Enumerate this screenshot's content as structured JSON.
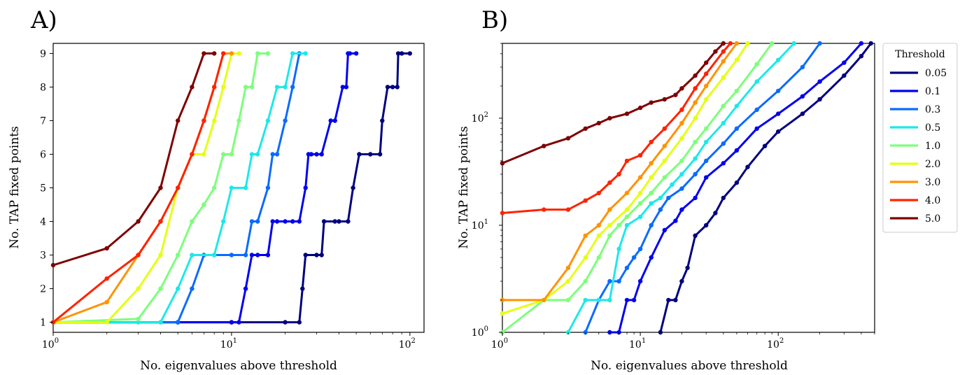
{
  "figure": {
    "panel_a_label": "A)",
    "panel_b_label": "B)"
  },
  "legend": {
    "title": "Threshold",
    "entries": [
      {
        "label": "0.05",
        "color": "#00007f"
      },
      {
        "label": "0.1",
        "color": "#0000f1"
      },
      {
        "label": "0.3",
        "color": "#0a6bff"
      },
      {
        "label": "0.5",
        "color": "#1ee8e8"
      },
      {
        "label": "1.0",
        "color": "#7dff7a"
      },
      {
        "label": "2.0",
        "color": "#e4ff13"
      },
      {
        "label": "3.0",
        "color": "#ff9300"
      },
      {
        "label": "4.0",
        "color": "#ff2200"
      },
      {
        "label": "5.0",
        "color": "#7f0000"
      }
    ]
  },
  "chart_data": [
    {
      "type": "line",
      "title": "A)",
      "xlabel": "No. eigenvalues above threshold",
      "ylabel": "No. TAP fixed points",
      "xscale": "log",
      "yscale": "linear",
      "xlim": [
        1,
        120
      ],
      "ylim": [
        0.7,
        9.3
      ],
      "xticks": [
        {
          "value": 1,
          "base": "10",
          "exp": "0"
        },
        {
          "value": 10,
          "base": "10",
          "exp": "1"
        },
        {
          "value": 100,
          "base": "10",
          "exp": "2"
        }
      ],
      "yticks": [
        "1",
        "2",
        "3",
        "4",
        "5",
        "6",
        "7",
        "8",
        "9"
      ],
      "series": [
        {
          "name": "0.05",
          "color": "#00007f",
          "x": [
            1,
            5,
            10,
            20,
            24,
            25,
            26,
            30,
            32,
            33,
            38,
            40,
            45,
            48,
            52,
            60,
            68,
            70,
            75,
            80,
            85,
            86,
            90,
            100
          ],
          "y": [
            1,
            1,
            1,
            1,
            1,
            2,
            3,
            3,
            3,
            4,
            4,
            4,
            4,
            5,
            6,
            6,
            6,
            7,
            8,
            8,
            8,
            9,
            9,
            9
          ]
        },
        {
          "name": "0.1",
          "color": "#0000f1",
          "x": [
            1,
            5,
            10,
            11,
            12,
            13,
            14,
            16,
            17,
            18,
            20,
            22,
            24,
            26,
            27,
            28,
            30,
            32,
            36,
            38,
            42,
            44,
            45,
            46,
            50
          ],
          "y": [
            1,
            1,
            1,
            1,
            2,
            3,
            3,
            3,
            4,
            4,
            4,
            4,
            4,
            5,
            6,
            6,
            6,
            6,
            7,
            7,
            8,
            8,
            9,
            9,
            9
          ]
        },
        {
          "name": "0.3",
          "color": "#0a6bff",
          "x": [
            1,
            4,
            5,
            6,
            7,
            8,
            10,
            12,
            13,
            14,
            16,
            17,
            18,
            20,
            22,
            24
          ],
          "y": [
            1,
            1,
            1,
            2,
            3,
            3,
            3,
            3,
            4,
            4,
            5,
            6,
            6,
            7,
            8,
            9
          ]
        },
        {
          "name": "0.5",
          "color": "#1ee8e8",
          "x": [
            1,
            3,
            4,
            5,
            6,
            8,
            9,
            10,
            12,
            13,
            14,
            16,
            18,
            20,
            22,
            26
          ],
          "y": [
            1,
            1,
            1,
            2,
            3,
            3,
            4,
            5,
            5,
            6,
            6,
            7,
            8,
            8,
            9,
            9
          ]
        },
        {
          "name": "1.0",
          "color": "#7dff7a",
          "x": [
            1,
            3,
            4,
            5,
            6,
            7,
            8,
            9,
            10,
            11,
            12,
            13,
            14,
            16
          ],
          "y": [
            1,
            1.1,
            2,
            3,
            4,
            4.5,
            5,
            6,
            6,
            7,
            8,
            8,
            9,
            9
          ]
        },
        {
          "name": "2.0",
          "color": "#e4ff13",
          "x": [
            1,
            2,
            3,
            4,
            5,
            6,
            7,
            8,
            9,
            10,
            11
          ],
          "y": [
            1,
            1,
            2,
            3,
            5,
            6,
            6,
            7,
            8,
            9,
            9
          ]
        },
        {
          "name": "3.0",
          "color": "#ff9300",
          "x": [
            1,
            2,
            3,
            4,
            5,
            6,
            7,
            8,
            9,
            10
          ],
          "y": [
            1,
            1.6,
            3,
            4,
            5,
            6,
            7,
            8,
            9,
            9
          ]
        },
        {
          "name": "4.0",
          "color": "#ff2200",
          "x": [
            1,
            2,
            3,
            4,
            5,
            6,
            7,
            8,
            9
          ],
          "y": [
            1,
            2.3,
            3,
            4,
            5,
            6,
            7,
            8,
            9
          ]
        },
        {
          "name": "5.0",
          "color": "#7f0000",
          "x": [
            1,
            2,
            3,
            4,
            5,
            6,
            7,
            8
          ],
          "y": [
            2.7,
            3.2,
            4,
            5,
            7,
            8,
            9,
            9
          ]
        }
      ]
    },
    {
      "type": "line",
      "title": "B)",
      "xlabel": "No. eigenvalues above threshold",
      "ylabel": "No. TAP fixed points",
      "xscale": "log",
      "yscale": "log",
      "xlim": [
        1,
        500
      ],
      "ylim": [
        1,
        500
      ],
      "xticks": [
        {
          "value": 1,
          "base": "10",
          "exp": "0"
        },
        {
          "value": 10,
          "base": "10",
          "exp": "1"
        },
        {
          "value": 100,
          "base": "10",
          "exp": "2"
        }
      ],
      "yticks": [
        {
          "value": 1,
          "base": "10",
          "exp": "0"
        },
        {
          "value": 10,
          "base": "10",
          "exp": "1"
        },
        {
          "value": 100,
          "base": "10",
          "exp": "2"
        }
      ],
      "series": [
        {
          "name": "0.05",
          "color": "#00007f",
          "x": [
            14,
            16,
            18,
            20,
            22,
            25,
            30,
            35,
            40,
            50,
            60,
            80,
            100,
            150,
            200,
            300,
            400,
            470
          ],
          "y": [
            1,
            2,
            2,
            3,
            4,
            8,
            10,
            13,
            18,
            25,
            35,
            55,
            75,
            110,
            150,
            250,
            380,
            500
          ]
        },
        {
          "name": "0.1",
          "color": "#0000f1",
          "x": [
            6,
            7,
            8,
            9,
            10,
            12,
            15,
            18,
            20,
            25,
            30,
            40,
            50,
            70,
            100,
            150,
            200,
            300,
            400
          ],
          "y": [
            1,
            1,
            2,
            2,
            3,
            5,
            9,
            11,
            14,
            18,
            28,
            38,
            50,
            80,
            110,
            160,
            220,
            330,
            500
          ]
        },
        {
          "name": "0.3",
          "color": "#0a6bff",
          "x": [
            4,
            5,
            6,
            7,
            8,
            9,
            10,
            12,
            14,
            16,
            20,
            25,
            30,
            40,
            50,
            70,
            100,
            150,
            200
          ],
          "y": [
            1,
            2,
            3,
            3,
            4,
            5,
            6,
            10,
            14,
            18,
            22,
            30,
            40,
            58,
            80,
            120,
            180,
            300,
            500
          ]
        },
        {
          "name": "0.5",
          "color": "#1ee8e8",
          "x": [
            3,
            4,
            5,
            6,
            7,
            8,
            10,
            12,
            14,
            17,
            20,
            25,
            30,
            40,
            50,
            70,
            100,
            130
          ],
          "y": [
            1,
            2,
            2,
            2,
            6,
            10,
            12,
            16,
            18,
            24,
            30,
            42,
            60,
            90,
            130,
            220,
            350,
            500
          ]
        },
        {
          "name": "1.0",
          "color": "#7dff7a",
          "x": [
            1,
            2,
            3,
            4,
            5,
            6,
            7,
            8,
            10,
            12,
            15,
            20,
            25,
            30,
            40,
            50,
            70,
            90
          ],
          "y": [
            1,
            2,
            2,
            3,
            5,
            8,
            10,
            12,
            16,
            20,
            28,
            40,
            60,
            80,
            130,
            180,
            320,
            500
          ]
        },
        {
          "name": "2.0",
          "color": "#e4ff13",
          "x": [
            1,
            2,
            3,
            4,
            5,
            6,
            8,
            10,
            12,
            15,
            20,
            25,
            30,
            40,
            50,
            60
          ],
          "y": [
            1.5,
            2,
            3,
            5,
            8,
            10,
            14,
            20,
            28,
            40,
            65,
            100,
            150,
            240,
            350,
            500
          ]
        },
        {
          "name": "3.0",
          "color": "#ff9300",
          "x": [
            1,
            2,
            3,
            4,
            5,
            6,
            8,
            10,
            12,
            15,
            20,
            25,
            30,
            40,
            50
          ],
          "y": [
            2,
            2,
            4,
            8,
            10,
            14,
            20,
            28,
            38,
            55,
            90,
            140,
            200,
            340,
            500
          ]
        },
        {
          "name": "4.0",
          "color": "#ff2200",
          "x": [
            1,
            2,
            3,
            4,
            5,
            6,
            7,
            8,
            10,
            12,
            15,
            20,
            25,
            30,
            40,
            45
          ],
          "y": [
            13,
            14,
            14,
            17,
            20,
            25,
            30,
            40,
            45,
            60,
            80,
            120,
            190,
            260,
            420,
            500
          ]
        },
        {
          "name": "5.0",
          "color": "#7f0000",
          "x": [
            1,
            2,
            3,
            4,
            5,
            6,
            8,
            10,
            12,
            15,
            18,
            20,
            25,
            30,
            35,
            40
          ],
          "y": [
            38,
            55,
            65,
            80,
            90,
            100,
            110,
            125,
            140,
            150,
            165,
            190,
            250,
            330,
            420,
            500
          ]
        }
      ]
    }
  ]
}
